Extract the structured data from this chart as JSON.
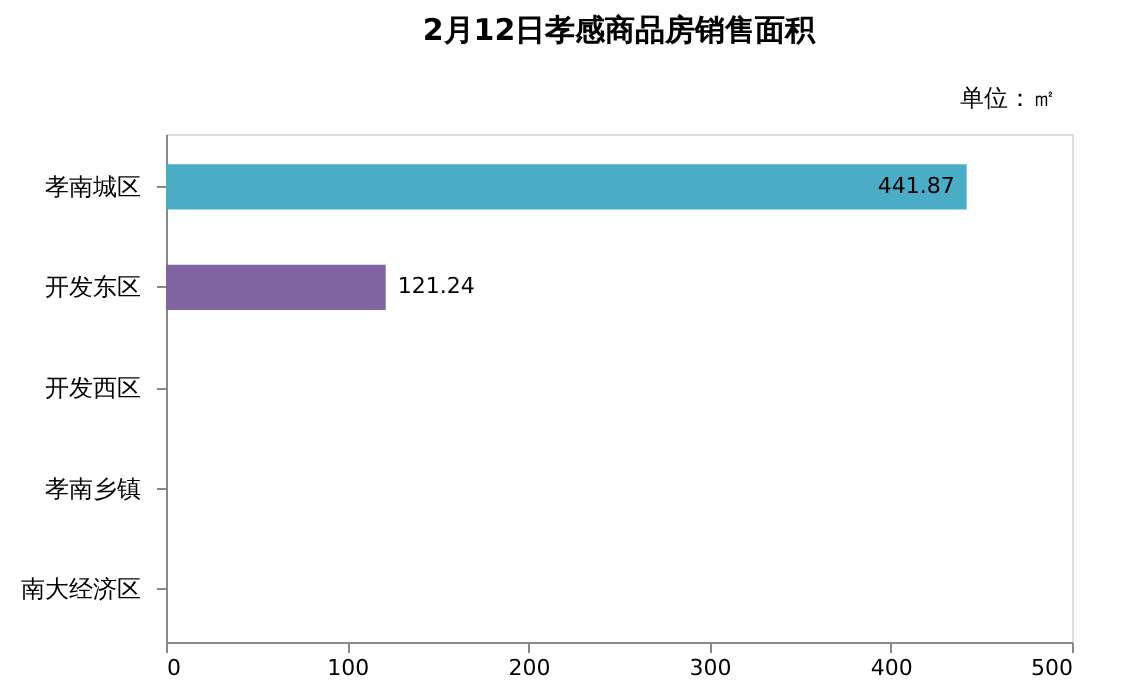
{
  "chart_data": {
    "type": "bar",
    "orientation": "horizontal",
    "title": "2月12日孝感商品房销售面积",
    "annotations": [
      "单位：㎡"
    ],
    "categories": [
      "孝南城区",
      "开发东区",
      "开发西区",
      "孝南乡镇",
      "南大经济区"
    ],
    "values": [
      441.87,
      121.24,
      0,
      0,
      0
    ],
    "colors": [
      "#4bacc6",
      "#8064a2",
      "#4bacc6",
      "#4bacc6",
      "#4bacc6"
    ],
    "value_labels": [
      "441.87",
      "121.24",
      null,
      null,
      null
    ],
    "xlim": [
      0,
      500
    ],
    "xticks": [
      0,
      100,
      200,
      300,
      400,
      500
    ],
    "grid": false
  }
}
